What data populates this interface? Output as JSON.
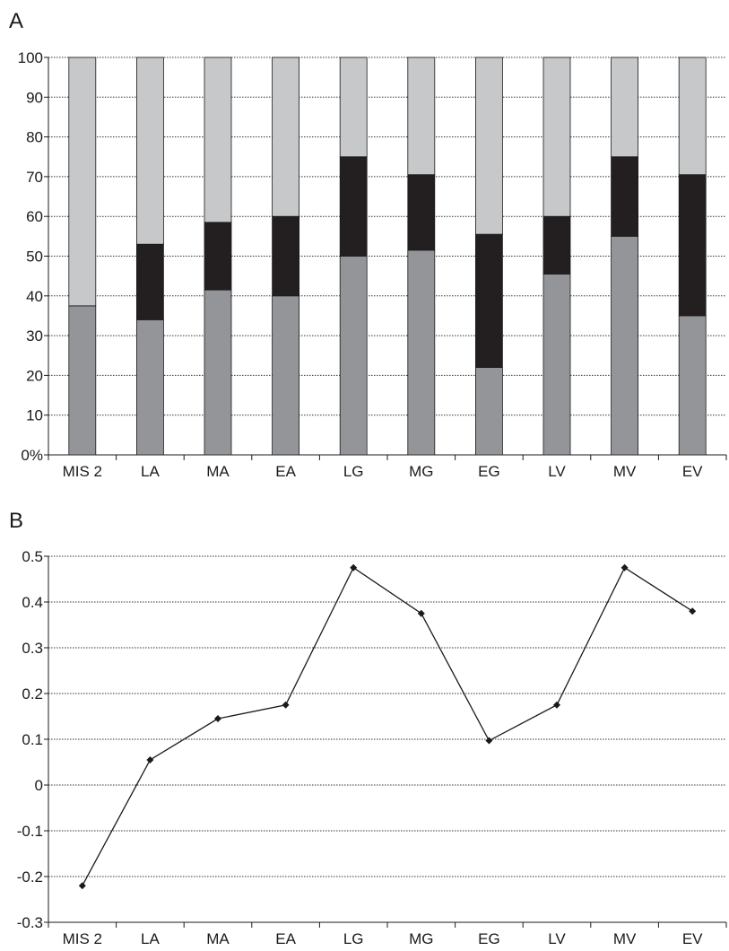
{
  "panel_a_label": "A",
  "panel_b_label": "B",
  "colors": {
    "bottom": "#939598",
    "middle": "#231f20",
    "top": "#c7c8ca",
    "line": "#1a1a1a",
    "grid": "#333333"
  },
  "chart_data": [
    {
      "type": "bar",
      "stacked": true,
      "title": "",
      "xlabel": "",
      "ylabel": "",
      "ylim": [
        0,
        100
      ],
      "yticks": [
        0,
        10,
        20,
        30,
        40,
        50,
        60,
        70,
        80,
        90,
        100
      ],
      "ytick_labels": [
        "0%",
        "10",
        "20",
        "30",
        "40",
        "50",
        "60",
        "70",
        "80",
        "90",
        "100"
      ],
      "grid": "horizontal dotted",
      "categories": [
        "MIS 2",
        "LA",
        "MA",
        "EA",
        "LG",
        "MG",
        "EG",
        "LV",
        "MV",
        "EV"
      ],
      "series": [
        {
          "values": [
            37.5,
            34,
            41.5,
            40,
            50,
            51.5,
            22,
            45.5,
            55,
            35
          ]
        },
        {
          "values": [
            0,
            19,
            17,
            20,
            25,
            19,
            33.5,
            14.5,
            20,
            35.5
          ]
        },
        {
          "values": [
            62.5,
            47,
            41.5,
            40,
            25,
            29.5,
            44.5,
            40,
            25,
            29.5
          ]
        }
      ]
    },
    {
      "type": "line",
      "title": "",
      "xlabel": "",
      "ylabel": "",
      "ylim": [
        -0.3,
        0.5
      ],
      "yticks": [
        -0.3,
        -0.2,
        -0.1,
        0,
        0.1,
        0.2,
        0.3,
        0.4,
        0.5
      ],
      "ytick_labels": [
        "-0.3",
        "-0.2",
        "-0.1",
        "0",
        "0.1",
        "0.2",
        "0.3",
        "0.4",
        "0.5"
      ],
      "grid": "horizontal dotted",
      "categories": [
        "MIS 2",
        "LA",
        "MA",
        "EA",
        "LG",
        "MG",
        "EG",
        "LV",
        "MV",
        "EV"
      ],
      "series": [
        {
          "values": [
            -0.22,
            0.055,
            0.145,
            0.175,
            0.475,
            0.375,
            0.097,
            0.175,
            0.475,
            0.38
          ],
          "marker": "diamond"
        }
      ]
    }
  ]
}
